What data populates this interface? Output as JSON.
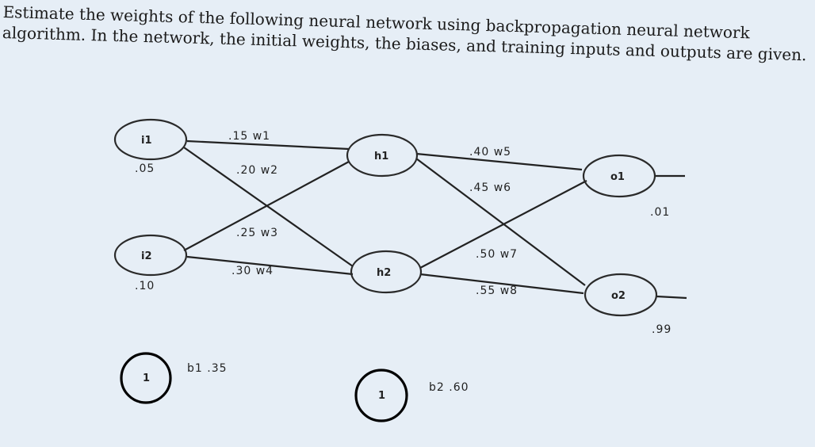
{
  "question": {
    "line1": "Estimate the weights of the following neural network using backpropagation neural network",
    "line2": "algorithm. In the network, the initial weights, the biases, and training inputs and outputs are given."
  },
  "inputs": [
    {
      "name": "i1",
      "value": ".05"
    },
    {
      "name": "i2",
      "value": ".10"
    }
  ],
  "hidden": [
    {
      "name": "h1"
    },
    {
      "name": "h2"
    }
  ],
  "outputs": [
    {
      "name": "o1",
      "target": ".01"
    },
    {
      "name": "o2",
      "target": ".99"
    }
  ],
  "weights": {
    "w1": ".15 w1",
    "w2": ".20 w2",
    "w3": ".25 w3",
    "w4": ".30 w4",
    "w5": ".40 w5",
    "w6": ".45 w6",
    "w7": ".50 w7",
    "w8": ".55 w8"
  },
  "biases": [
    {
      "node": "1",
      "label": "b1 .35"
    },
    {
      "node": "1",
      "label": "b2 .60"
    }
  ]
}
